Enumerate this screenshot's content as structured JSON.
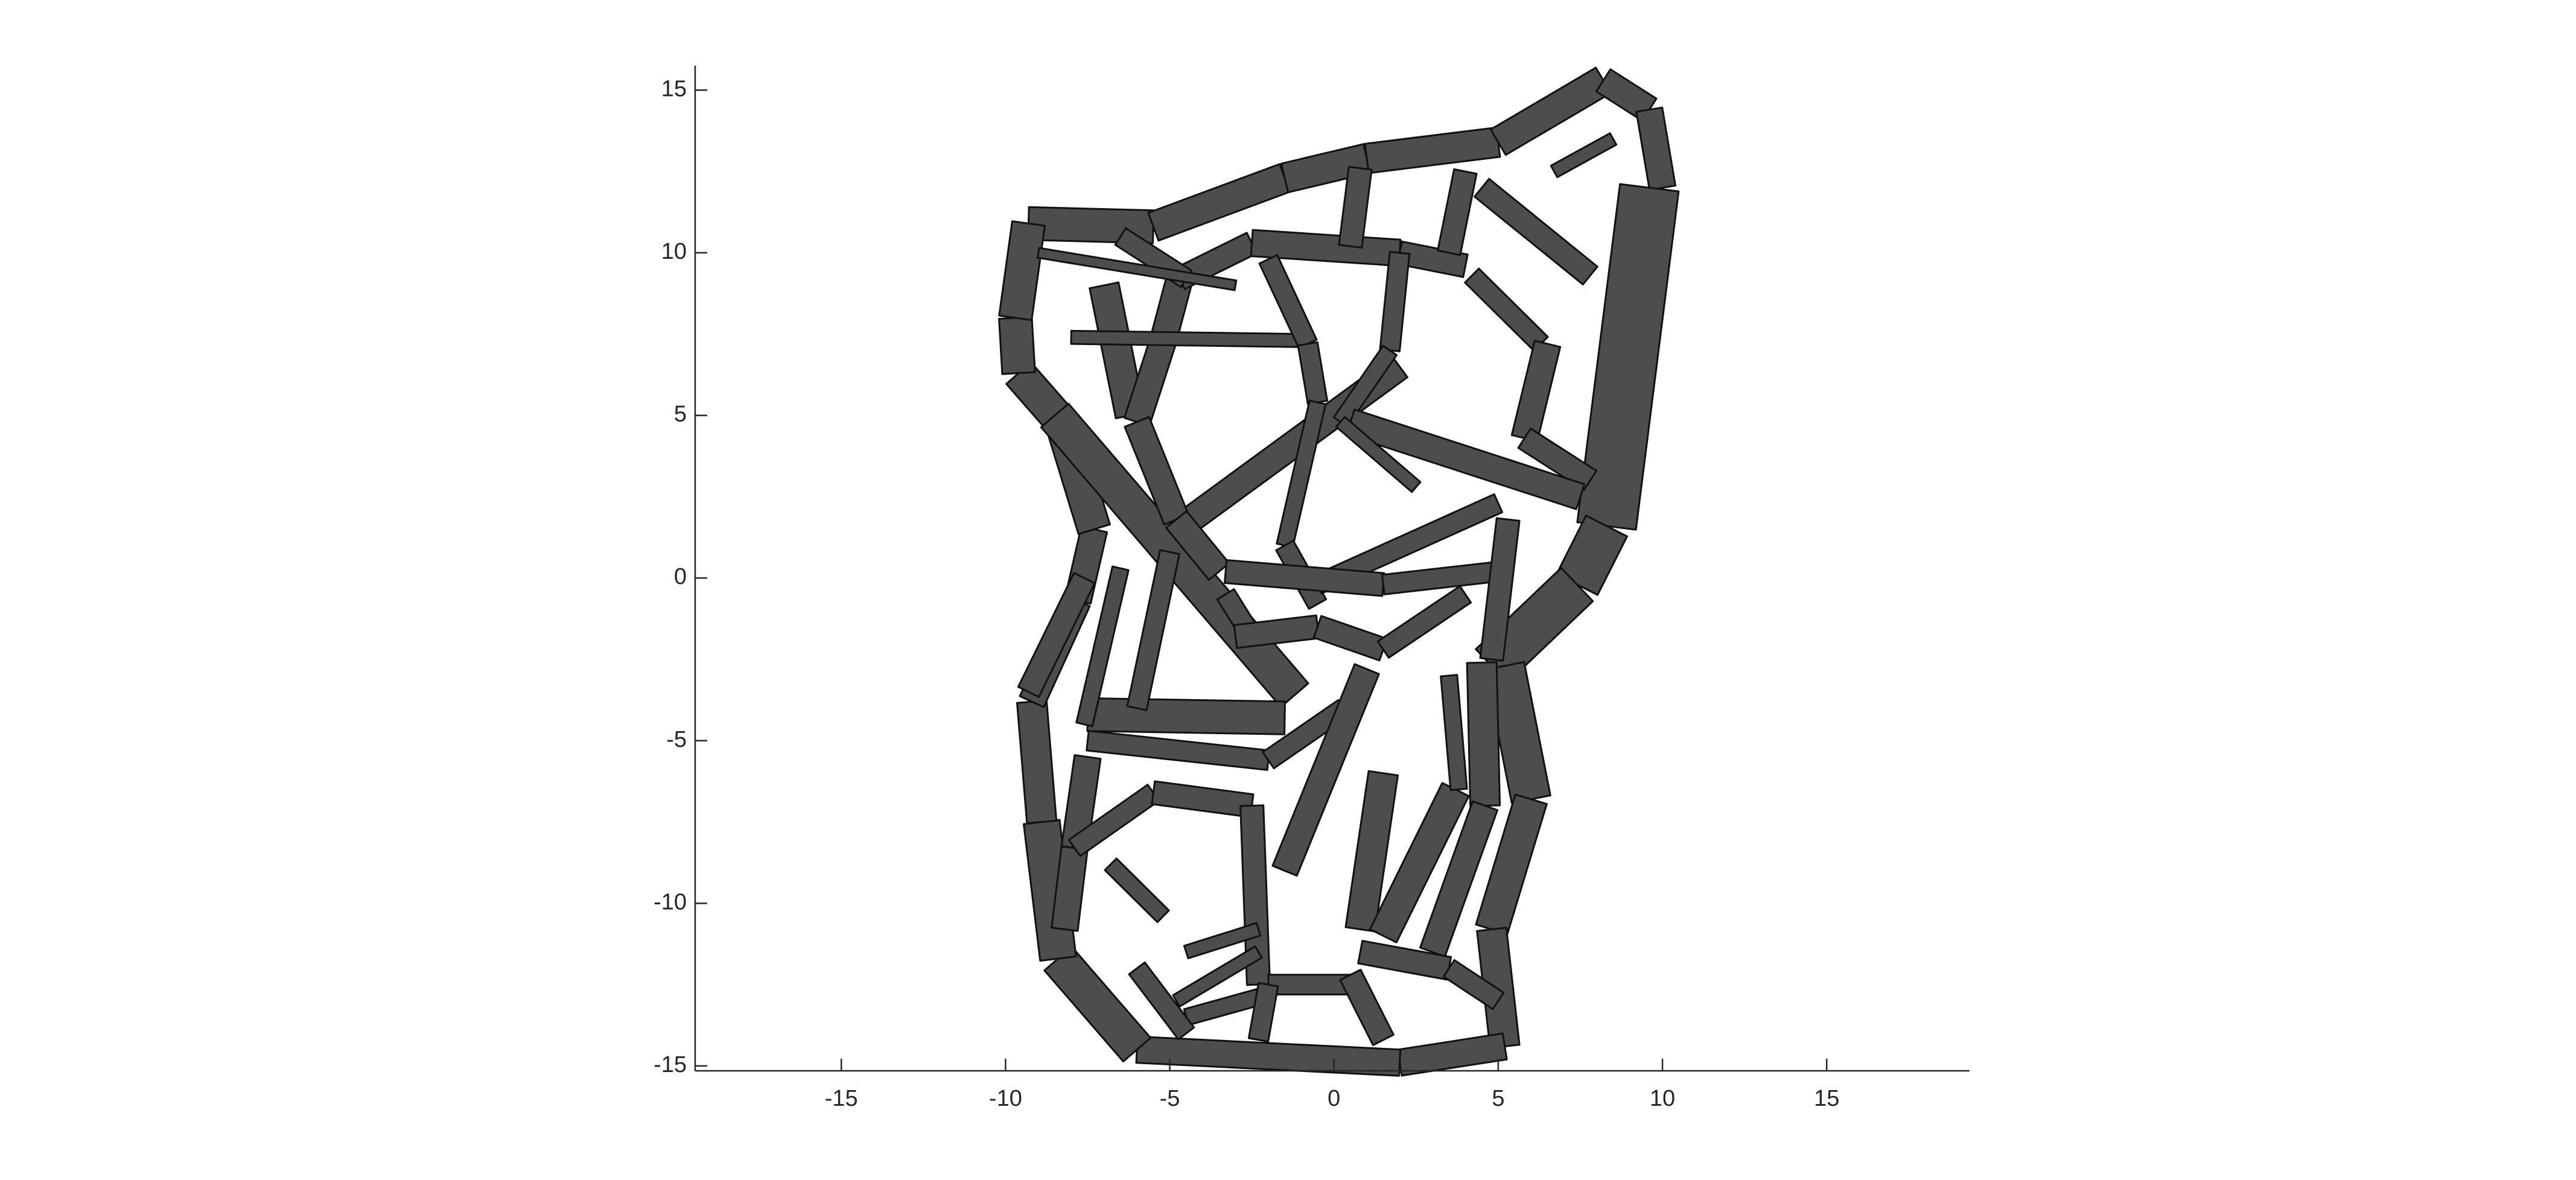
{
  "chart_data": {
    "type": "lattice",
    "xlim": [
      -19.45,
      19.35
    ],
    "ylim": [
      -15.15,
      15.75
    ],
    "xticks": [
      -15,
      -10,
      -5,
      0,
      5,
      10,
      15
    ],
    "yticks": [
      -15,
      -10,
      -5,
      0,
      5,
      10,
      15
    ],
    "color": "#4d4d4d",
    "edge_color": "#111111",
    "struts": [
      {
        "x": [
          -9.3,
          -5.5
        ],
        "y": [
          10.9,
          10.8
        ],
        "w": 1.0
      },
      {
        "x": [
          -5.5,
          -1.5
        ],
        "y": [
          10.8,
          12.3
        ],
        "w": 0.9
      },
      {
        "x": [
          -1.5,
          1
        ],
        "y": [
          12.3,
          12.9
        ],
        "w": 0.9
      },
      {
        "x": [
          1,
          5
        ],
        "y": [
          12.9,
          13.4
        ],
        "w": 0.9
      },
      {
        "x": [
          5,
          8.2
        ],
        "y": [
          13.4,
          15.3
        ],
        "w": 0.9
      },
      {
        "x": [
          8.2,
          9.6
        ],
        "y": [
          15.3,
          14.4
        ],
        "w": 0.8
      },
      {
        "x": [
          9.6,
          10
        ],
        "y": [
          14.4,
          12
        ],
        "w": 0.8
      },
      {
        "x": [
          9.6,
          8.3
        ],
        "y": [
          12,
          1.6
        ],
        "w": 1.8
      },
      {
        "x": [
          8.3,
          7.4
        ],
        "y": [
          1.6,
          -0.2
        ],
        "w": 1.4
      },
      {
        "x": [
          7.4,
          4.8
        ],
        "y": [
          -0.2,
          -2.7
        ],
        "w": 1.4
      },
      {
        "x": [
          5.2,
          6
        ],
        "y": [
          -2.7,
          -6.8
        ],
        "w": 1.2
      },
      {
        "x": [
          6,
          4.8
        ],
        "y": [
          -6.8,
          -10.8
        ],
        "w": 1.0
      },
      {
        "x": [
          4.8,
          5.2
        ],
        "y": [
          -10.8,
          -14.4
        ],
        "w": 0.9
      },
      {
        "x": [
          5.2,
          2
        ],
        "y": [
          -14.4,
          -14.9
        ],
        "w": 0.8
      },
      {
        "x": [
          2,
          -6
        ],
        "y": [
          -14.9,
          -14.5
        ],
        "w": 0.8
      },
      {
        "x": [
          -6,
          -8.4
        ],
        "y": [
          -14.5,
          -11.7
        ],
        "w": 1.1
      },
      {
        "x": [
          -8.4,
          -8.9
        ],
        "y": [
          -11.7,
          -7.5
        ],
        "w": 1.1
      },
      {
        "x": [
          -8.9,
          -9.2
        ],
        "y": [
          -7.5,
          -3.8
        ],
        "w": 0.9
      },
      {
        "x": [
          -9.2,
          -7.8
        ],
        "y": [
          -3.8,
          -0.7
        ],
        "w": 0.8
      },
      {
        "x": [
          -7.8,
          -7.3
        ],
        "y": [
          -0.7,
          1.5
        ],
        "w": 0.8
      },
      {
        "x": [
          -7.3,
          -8.3
        ],
        "y": [
          1.5,
          4.8
        ],
        "w": 1.0
      },
      {
        "x": [
          -8.3,
          -9.6
        ],
        "y": [
          4.8,
          6.3
        ],
        "w": 1.0
      },
      {
        "x": [
          -9.6,
          -9.7
        ],
        "y": [
          6.3,
          8.0
        ],
        "w": 1.0
      },
      {
        "x": [
          -9.7,
          -9.3
        ],
        "y": [
          8.0,
          10.9
        ],
        "w": 1.0
      },
      {
        "x": [
          -8.5,
          -1.2
        ],
        "y": [
          5,
          -3.6
        ],
        "w": 1.1
      },
      {
        "x": [
          -4.5,
          2
        ],
        "y": [
          1.7,
          6.5
        ],
        "w": 0.8
      },
      {
        "x": [
          -7,
          -6.2
        ],
        "y": [
          9,
          5
        ],
        "w": 0.9
      },
      {
        "x": [
          -4.7,
          -5.2
        ],
        "y": [
          9.2,
          7.3
        ],
        "w": 0.8
      },
      {
        "x": [
          -5.2,
          -6
        ],
        "y": [
          7.3,
          4.8
        ],
        "w": 0.8
      },
      {
        "x": [
          -6,
          -4.8
        ],
        "y": [
          4.8,
          1.8
        ],
        "w": 0.8
      },
      {
        "x": [
          -4.8,
          -3.5
        ],
        "y": [
          1.8,
          0.2
        ],
        "w": 0.8
      },
      {
        "x": [
          -4.7,
          -2.5
        ],
        "y": [
          9.2,
          10.3
        ],
        "w": 0.7
      },
      {
        "x": [
          -2.5,
          2
        ],
        "y": [
          10.3,
          10
        ],
        "w": 0.8
      },
      {
        "x": [
          2,
          4
        ],
        "y": [
          10,
          9.6
        ],
        "w": 0.7
      },
      {
        "x": [
          4.5,
          7.8
        ],
        "y": [
          12,
          9.3
        ],
        "w": 0.7
      },
      {
        "x": [
          4.2,
          6.3
        ],
        "y": [
          9.3,
          7.2
        ],
        "w": 0.6
      },
      {
        "x": [
          6.5,
          5.8
        ],
        "y": [
          7.2,
          4.3
        ],
        "w": 0.8
      },
      {
        "x": [
          5.8,
          7.8
        ],
        "y": [
          4.3,
          3
        ],
        "w": 0.7
      },
      {
        "x": [
          -8,
          -0.8
        ],
        "y": [
          7.4,
          7.3
        ],
        "w": 0.4
      },
      {
        "x": [
          -2,
          -0.8
        ],
        "y": [
          9.8,
          7.2
        ],
        "w": 0.6
      },
      {
        "x": [
          -0.8,
          -0.5
        ],
        "y": [
          7.2,
          5.4
        ],
        "w": 0.6
      },
      {
        "x": [
          -0.5,
          -1.5
        ],
        "y": [
          5.4,
          1
        ],
        "w": 0.5
      },
      {
        "x": [
          -1.5,
          -0.5
        ],
        "y": [
          1,
          -0.8
        ],
        "w": 0.6
      },
      {
        "x": [
          2,
          1.7
        ],
        "y": [
          10,
          7
        ],
        "w": 0.6
      },
      {
        "x": [
          1.7,
          0.2
        ],
        "y": [
          7,
          4.8
        ],
        "w": 0.5
      },
      {
        "x": [
          0.5,
          7.5
        ],
        "y": [
          4.8,
          2.5
        ],
        "w": 0.8
      },
      {
        "x": [
          0.2,
          2.5
        ],
        "y": [
          4.8,
          2.8
        ],
        "w": 0.4
      },
      {
        "x": [
          -0.5,
          5
        ],
        "y": [
          -0.2,
          2.3
        ],
        "w": 0.6
      },
      {
        "x": [
          -3.3,
          1.5
        ],
        "y": [
          0.2,
          -0.2
        ],
        "w": 0.7
      },
      {
        "x": [
          1.5,
          5
        ],
        "y": [
          -0.2,
          0.2
        ],
        "w": 0.6
      },
      {
        "x": [
          5.3,
          4.8
        ],
        "y": [
          1.8,
          -2.5
        ],
        "w": 0.7
      },
      {
        "x": [
          -3.3,
          -2.5
        ],
        "y": [
          -0.5,
          -1.8
        ],
        "w": 0.6
      },
      {
        "x": [
          -3,
          -0.5
        ],
        "y": [
          -1.8,
          -1.5
        ],
        "w": 0.7
      },
      {
        "x": [
          -0.5,
          1.5
        ],
        "y": [
          -1.5,
          -2.2
        ],
        "w": 0.7
      },
      {
        "x": [
          1.5,
          4
        ],
        "y": [
          -2.2,
          -0.5
        ],
        "w": 0.6
      },
      {
        "x": [
          -7.5,
          -1.5
        ],
        "y": [
          -4.2,
          -4.3
        ],
        "w": 1.0
      },
      {
        "x": [
          -7.6,
          -9.3
        ],
        "y": [
          0,
          -3.5
        ],
        "w": 0.7
      },
      {
        "x": [
          -6.5,
          -7.6
        ],
        "y": [
          0.3,
          -4.5
        ],
        "w": 0.5
      },
      {
        "x": [
          -5,
          -6
        ],
        "y": [
          0.8,
          -4
        ],
        "w": 0.6
      },
      {
        "x": [
          -7.5,
          -2
        ],
        "y": [
          -5,
          -5.6
        ],
        "w": 0.6
      },
      {
        "x": [
          -2,
          0.3
        ],
        "y": [
          -5.6,
          -4
        ],
        "w": 0.6
      },
      {
        "x": [
          -7.5,
          -7.9
        ],
        "y": [
          -5.5,
          -8.3
        ],
        "w": 0.8
      },
      {
        "x": [
          -7.9,
          -8.2
        ],
        "y": [
          -8.3,
          -10.8
        ],
        "w": 0.8
      },
      {
        "x": [
          -7.9,
          -5.5
        ],
        "y": [
          -8.3,
          -6.6
        ],
        "w": 0.6
      },
      {
        "x": [
          -5.5,
          -2.5
        ],
        "y": [
          -6.6,
          -7
        ],
        "w": 0.7
      },
      {
        "x": [
          -2.5,
          -2.3
        ],
        "y": [
          -7,
          -12.5
        ],
        "w": 0.7
      },
      {
        "x": [
          -6.8,
          -5.2
        ],
        "y": [
          -8.8,
          -10.4
        ],
        "w": 0.5
      },
      {
        "x": [
          -4.5,
          -2.3
        ],
        "y": [
          -11.5,
          -10.8
        ],
        "w": 0.4
      },
      {
        "x": [
          -4.8,
          -2.3
        ],
        "y": [
          -13,
          -11.5
        ],
        "w": 0.4
      },
      {
        "x": [
          -2,
          0.5
        ],
        "y": [
          -12.5,
          -12.5
        ],
        "w": 0.6
      },
      {
        "x": [
          1,
          -1.5
        ],
        "y": [
          -2.8,
          -9
        ],
        "w": 0.8
      },
      {
        "x": [
          1.5,
          0.8
        ],
        "y": [
          -6,
          -10.8
        ],
        "w": 0.9
      },
      {
        "x": [
          3.7,
          1.5
        ],
        "y": [
          -6.5,
          -11
        ],
        "w": 0.9
      },
      {
        "x": [
          3.5,
          3.8
        ],
        "y": [
          -3,
          -6.5
        ],
        "w": 0.5
      },
      {
        "x": [
          4.5,
          4.6
        ],
        "y": [
          -2.6,
          -7
        ],
        "w": 0.9
      },
      {
        "x": [
          4.6,
          3
        ],
        "y": [
          -7,
          -11.5
        ],
        "w": 0.8
      },
      {
        "x": [
          0.8,
          3.5
        ],
        "y": [
          -11.5,
          -12
        ],
        "w": 0.7
      },
      {
        "x": [
          3.5,
          5
        ],
        "y": [
          -12,
          -13
        ],
        "w": 0.6
      },
      {
        "x": [
          0.5,
          1.5
        ],
        "y": [
          -12.2,
          -14.2
        ],
        "w": 0.7
      },
      {
        "x": [
          -4.5,
          -2
        ],
        "y": [
          -13.5,
          -12.8
        ],
        "w": 0.5
      },
      {
        "x": [
          -6,
          -4.5
        ],
        "y": [
          -12,
          -14
        ],
        "w": 0.6
      },
      {
        "x": [
          -2,
          -2.3
        ],
        "y": [
          -12.5,
          -14.2
        ],
        "w": 0.6
      },
      {
        "x": [
          0.8,
          0.5
        ],
        "y": [
          12.6,
          10.2
        ],
        "w": 0.7
      },
      {
        "x": [
          4,
          3.5
        ],
        "y": [
          12.5,
          10
        ],
        "w": 0.7
      },
      {
        "x": [
          6.7,
          8.5
        ],
        "y": [
          12.5,
          13.5
        ],
        "w": 0.4
      },
      {
        "x": [
          -6.5,
          -4.5
        ],
        "y": [
          10.5,
          9.2
        ],
        "w": 0.6
      },
      {
        "x": [
          -9,
          -3
        ],
        "y": [
          10,
          9
        ],
        "w": 0.3
      }
    ]
  }
}
